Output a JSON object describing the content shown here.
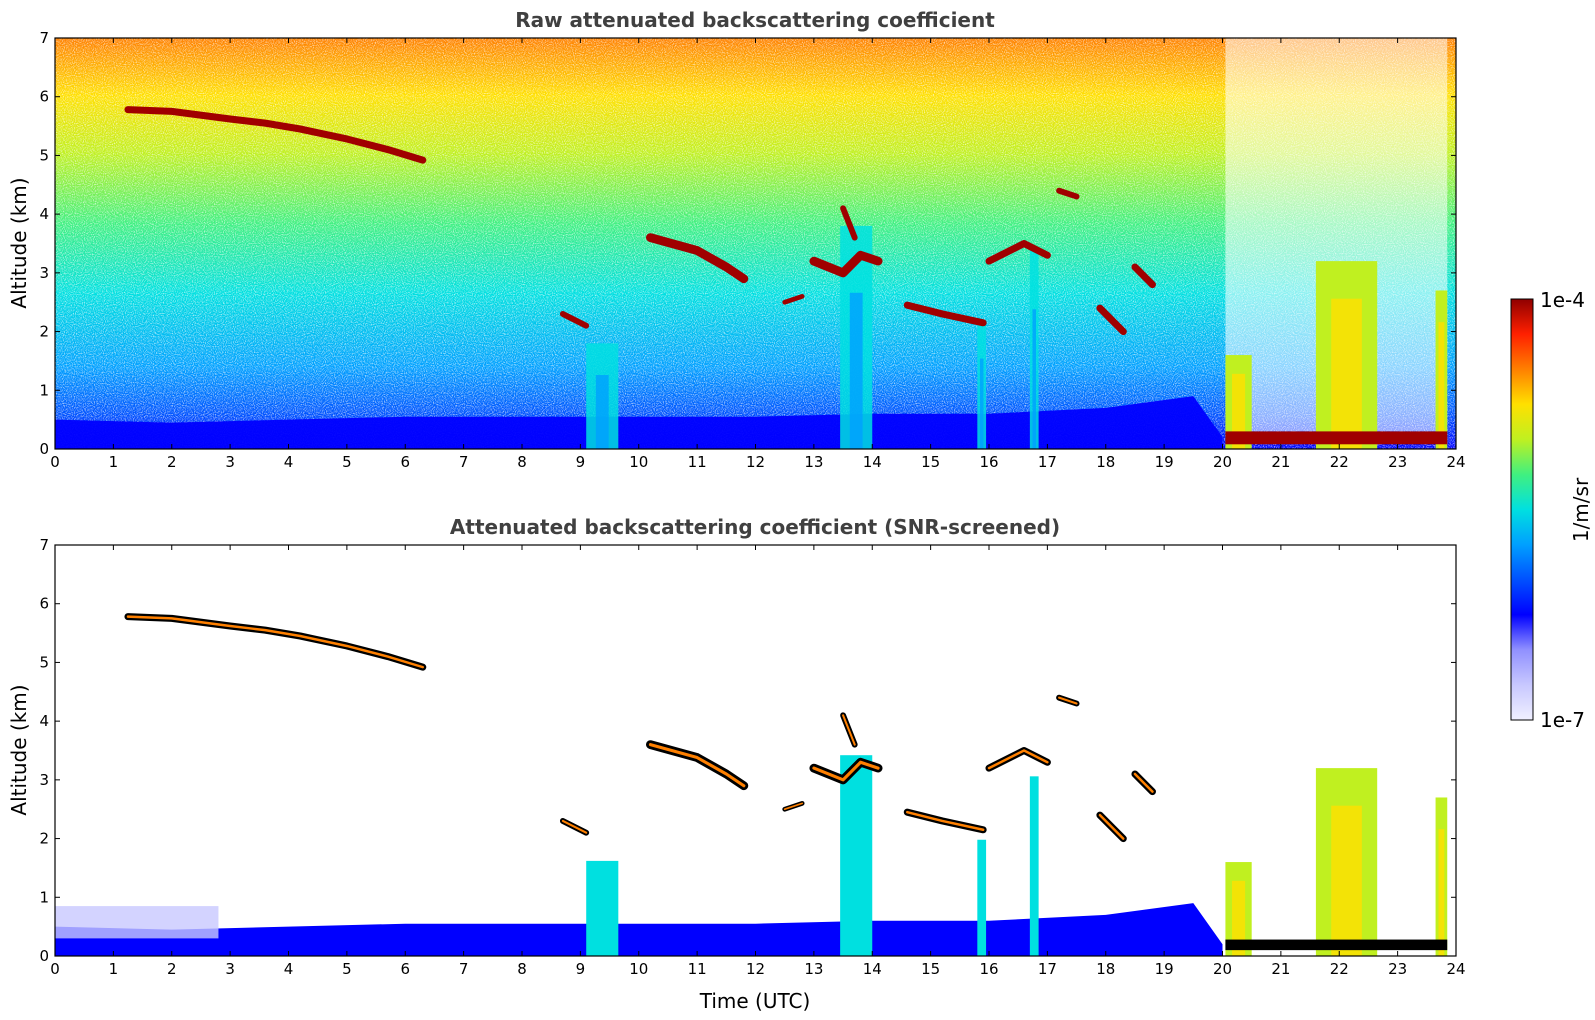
{
  "colors": {
    "colormap": [
      "#f0f0ff",
      "#c8c8ff",
      "#9090ff",
      "#0000ff",
      "#0050ff",
      "#00a0ff",
      "#00e0e0",
      "#40f080",
      "#c0f020",
      "#ffe000",
      "#ff8000",
      "#ff2000",
      "#900000"
    ],
    "cloud_core": "#a00000",
    "screened_edge": "#000000",
    "frame": "#000000",
    "title": "#404040"
  },
  "colorbar": {
    "max_label": "1e-4",
    "min_label": "1e-7",
    "unit_label": "1/m/sr"
  },
  "chart_data": [
    {
      "type": "heatmap",
      "title": "Raw attenuated backscattering coefficient",
      "xlabel": "",
      "ylabel": "Altitude (km)",
      "xlim": [
        0,
        24
      ],
      "ylim": [
        0,
        7
      ],
      "xticks": [
        "0",
        "1",
        "2",
        "3",
        "4",
        "5",
        "6",
        "7",
        "8",
        "9",
        "10",
        "11",
        "12",
        "13",
        "14",
        "15",
        "16",
        "17",
        "18",
        "19",
        "20",
        "21",
        "22",
        "23",
        "24"
      ],
      "yticks": [
        "0",
        "1",
        "2",
        "3",
        "4",
        "5",
        "6",
        "7"
      ],
      "colorscale": "log",
      "clim": [
        1e-07,
        0.0001
      ],
      "features": {
        "boundary_layer": [
          [
            0,
            0.5
          ],
          [
            2,
            0.45
          ],
          [
            4,
            0.5
          ],
          [
            6,
            0.55
          ],
          [
            8,
            0.55
          ],
          [
            10,
            0.55
          ],
          [
            12,
            0.55
          ],
          [
            14,
            0.6
          ],
          [
            16,
            0.6
          ],
          [
            18,
            0.7
          ],
          [
            19.5,
            0.9
          ],
          [
            20,
            0.2
          ]
        ],
        "cloud_layers": [
          {
            "points": [
              [
                1.25,
                5.78
              ],
              [
                2,
                5.75
              ],
              [
                3,
                5.62
              ],
              [
                3.6,
                5.55
              ],
              [
                4.2,
                5.45
              ],
              [
                5,
                5.28
              ],
              [
                5.7,
                5.1
              ],
              [
                6.3,
                4.92
              ]
            ],
            "thickness": 0.12
          },
          {
            "points": [
              [
                10.2,
                3.6
              ],
              [
                11,
                3.38
              ],
              [
                11.5,
                3.1
              ],
              [
                11.8,
                2.9
              ]
            ],
            "thickness": 0.15
          },
          {
            "points": [
              [
                8.7,
                2.3
              ],
              [
                9.1,
                2.1
              ]
            ],
            "thickness": 0.1
          },
          {
            "points": [
              [
                13.0,
                3.2
              ],
              [
                13.5,
                3.0
              ],
              [
                13.8,
                3.3
              ],
              [
                14.1,
                3.2
              ]
            ],
            "thickness": 0.15
          },
          {
            "points": [
              [
                13.5,
                4.1
              ],
              [
                13.7,
                3.6
              ]
            ],
            "thickness": 0.1
          },
          {
            "points": [
              [
                12.5,
                2.5
              ],
              [
                12.8,
                2.6
              ]
            ],
            "thickness": 0.08
          },
          {
            "points": [
              [
                14.6,
                2.45
              ],
              [
                15.2,
                2.3
              ],
              [
                15.9,
                2.15
              ]
            ],
            "thickness": 0.12
          },
          {
            "points": [
              [
                16.0,
                3.2
              ],
              [
                16.6,
                3.5
              ],
              [
                17.0,
                3.3
              ]
            ],
            "thickness": 0.12
          },
          {
            "points": [
              [
                17.2,
                4.4
              ],
              [
                17.5,
                4.3
              ]
            ],
            "thickness": 0.1
          },
          {
            "points": [
              [
                17.9,
                2.4
              ],
              [
                18.3,
                2.0
              ]
            ],
            "thickness": 0.12
          },
          {
            "points": [
              [
                18.5,
                3.1
              ],
              [
                18.8,
                2.8
              ]
            ],
            "thickness": 0.12
          }
        ],
        "convective_columns": [
          {
            "x": [
              9.1,
              9.65
            ],
            "top": 1.8
          },
          {
            "x": [
              13.45,
              14.0
            ],
            "top": 3.8
          },
          {
            "x": [
              15.8,
              15.95
            ],
            "top": 2.2
          },
          {
            "x": [
              16.7,
              16.85
            ],
            "top": 3.4
          }
        ],
        "low_cloud_blocks": [
          {
            "x": [
              20.05,
              20.5
            ],
            "top": 1.6
          },
          {
            "x": [
              21.6,
              22.65
            ],
            "top": 3.2
          },
          {
            "x": [
              23.65,
              23.85
            ],
            "top": 2.7
          }
        ],
        "dense_base_layer": {
          "x": [
            20.05,
            23.85
          ],
          "altitude": 0.2
        }
      }
    },
    {
      "type": "heatmap",
      "title": "Attenuated backscattering coefficient (SNR-screened)",
      "xlabel": "Time (UTC)",
      "ylabel": "Altitude (km)",
      "xlim": [
        0,
        24
      ],
      "ylim": [
        0,
        7
      ],
      "xticks": [
        "0",
        "1",
        "2",
        "3",
        "4",
        "5",
        "6",
        "7",
        "8",
        "9",
        "10",
        "11",
        "12",
        "13",
        "14",
        "15",
        "16",
        "17",
        "18",
        "19",
        "20",
        "21",
        "22",
        "23",
        "24"
      ],
      "yticks": [
        "0",
        "1",
        "2",
        "3",
        "4",
        "5",
        "6",
        "7"
      ],
      "colorscale": "log",
      "clim": [
        1e-07,
        0.0001
      ],
      "screened": true
    }
  ]
}
